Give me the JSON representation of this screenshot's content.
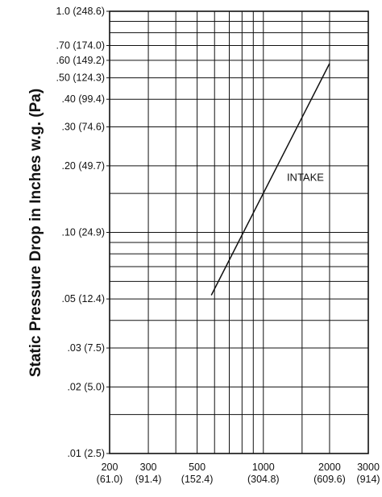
{
  "chart_data": {
    "type": "line",
    "title": "",
    "xlabel": "",
    "ylabel": "Static Pressure Drop in Inches w.g. (Pa)",
    "x_scale": "log",
    "y_scale": "log",
    "xlim": [
      200,
      3000
    ],
    "ylim": [
      0.01,
      1.0
    ],
    "grid": true,
    "x_ticks": [
      {
        "value": 200,
        "label": "200",
        "sub": "(61.0)"
      },
      {
        "value": 300,
        "label": "300",
        "sub": "(91.4)"
      },
      {
        "value": 500,
        "label": "500",
        "sub": "(152.4)"
      },
      {
        "value": 1000,
        "label": "1000",
        "sub": "(304.8)"
      },
      {
        "value": 2000,
        "label": "2000",
        "sub": "(609.6)"
      },
      {
        "value": 3000,
        "label": "3000",
        "sub": "(914)"
      }
    ],
    "y_ticks": [
      {
        "value": 1.0,
        "label": "1.0 (248.6)"
      },
      {
        "value": 0.7,
        "label": ".70 (174.0)"
      },
      {
        "value": 0.6,
        "label": ".60 (149.2)"
      },
      {
        "value": 0.5,
        "label": ".50 (124.3)"
      },
      {
        "value": 0.4,
        "label": ".40 (99.4)"
      },
      {
        "value": 0.3,
        "label": ".30 (74.6)"
      },
      {
        "value": 0.2,
        "label": ".20 (49.7)"
      },
      {
        "value": 0.1,
        "label": ".10 (24.9)"
      },
      {
        "value": 0.05,
        "label": ".05 (12.4)"
      },
      {
        "value": 0.03,
        "label": ".03 (7.5)"
      },
      {
        "value": 0.02,
        "label": ".02 (5.0)"
      },
      {
        "value": 0.01,
        "label": ".01 (2.5)"
      }
    ],
    "x_grid": [
      200,
      300,
      400,
      500,
      600,
      700,
      800,
      900,
      1000,
      1500,
      2000,
      3000
    ],
    "y_grid": [
      0.01,
      0.015,
      0.02,
      0.03,
      0.04,
      0.05,
      0.06,
      0.07,
      0.08,
      0.09,
      0.1,
      0.15,
      0.2,
      0.3,
      0.4,
      0.5,
      0.6,
      0.7,
      0.8,
      0.9,
      1.0
    ],
    "series": [
      {
        "name": "INTAKE",
        "color": "#111111",
        "points": [
          {
            "x": 580,
            "y": 0.052
          },
          {
            "x": 2000,
            "y": 0.58
          }
        ]
      }
    ]
  }
}
